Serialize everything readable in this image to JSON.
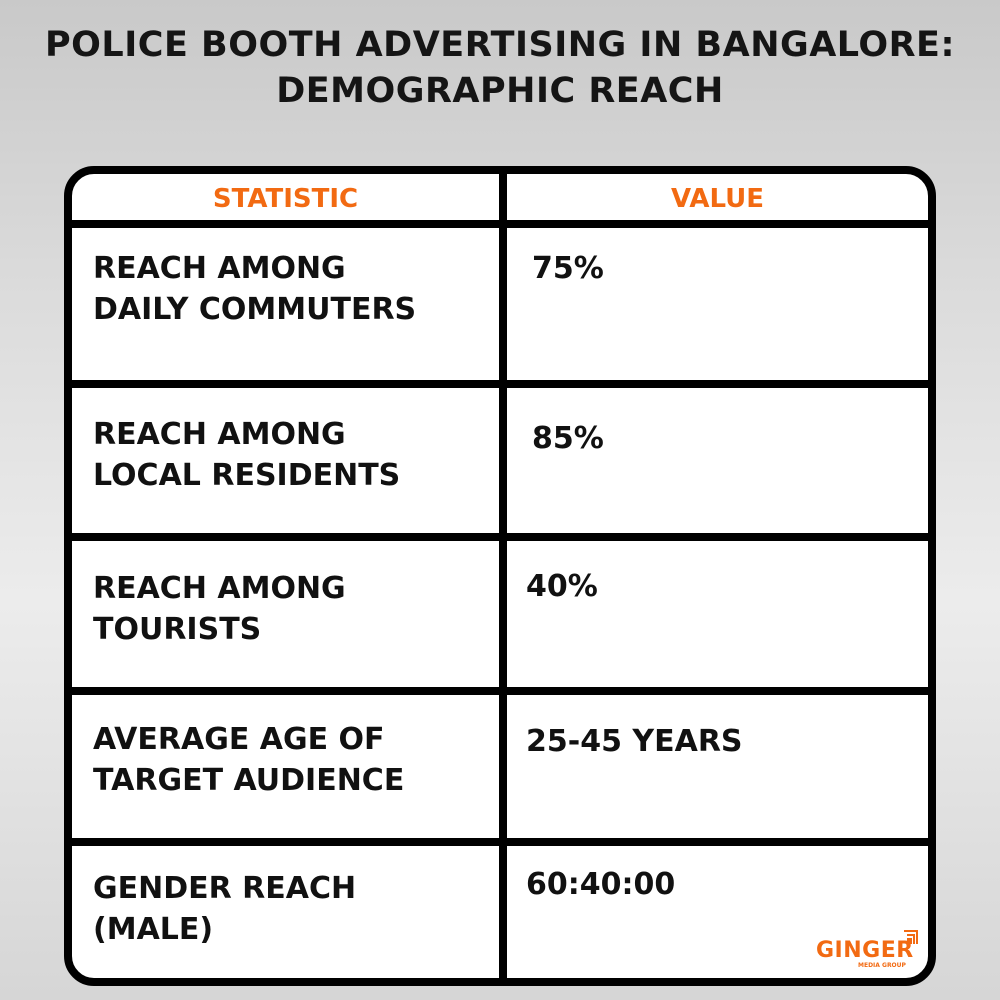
{
  "title_lines": [
    "POLICE BOOTH ADVERTISING IN BANGALORE:",
    "DEMOGRAPHIC REACH"
  ],
  "table": {
    "headers": [
      "STATISTIC",
      "VALUE"
    ],
    "rows": [
      {
        "statistic": [
          "REACH AMONG",
          "DAILY COMMUTERS"
        ],
        "value": "75%"
      },
      {
        "statistic": [
          "REACH AMONG",
          "LOCAL RESIDENTS"
        ],
        "value": "85%"
      },
      {
        "statistic": [
          "REACH AMONG",
          "TOURISTS"
        ],
        "value": "40%"
      },
      {
        "statistic": [
          "AVERAGE AGE OF",
          "TARGET AUDIENCE"
        ],
        "value": "25-45 YEARS"
      },
      {
        "statistic": [
          "GENDER REACH",
          "(MALE)"
        ],
        "value": "60:40:00"
      }
    ]
  },
  "logo": {
    "name": "GINGER",
    "tagline": "MEDIA GROUP"
  },
  "colors": {
    "accent": "#f26a12",
    "border": "#000000"
  }
}
